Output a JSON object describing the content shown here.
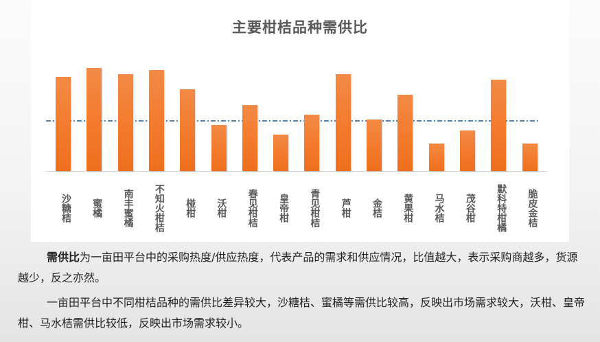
{
  "chart_data": {
    "type": "bar",
    "title": "主要柑桔品种需供比",
    "xlabel": "",
    "ylabel": "",
    "categories": [
      "沙糖桔",
      "蜜橘",
      "南丰蜜橘",
      "不知火柑桔",
      "椪柑",
      "沃柑",
      "春见柑桔",
      "皇帝柑",
      "青见柑桔",
      "芦柑",
      "金桔",
      "黄果柑",
      "马水桔",
      "茂谷柑",
      "默科特柑橘",
      "脆皮金桔"
    ],
    "values": [
      1.83,
      2.0,
      1.88,
      1.96,
      1.59,
      0.89,
      1.28,
      0.71,
      1.09,
      1.88,
      1.0,
      1.48,
      0.53,
      0.79,
      1.77,
      0.53
    ],
    "reference_line": {
      "value": 1.0,
      "style": "dash-dot",
      "color": "#4f7fae"
    },
    "ylim": [
      0,
      2.27
    ],
    "grid": false,
    "legend": null,
    "bar_color": "#f37a2c"
  },
  "paragraphs": {
    "p1_bold": "需供比",
    "p1_rest": "为一亩田平台中的采购热度/供应热度，代表产品的需求和供应情况，比值越大，表示采购商越多，货源越少，反之亦然。",
    "p2": "一亩田平台中不同柑桔品种的需供比差异较大，沙糖桔、蜜橘等需供比较高，反映出市场需求较大，沃柑、皇帝柑、马水桔需供比较低，反映出市场需求较小。"
  }
}
